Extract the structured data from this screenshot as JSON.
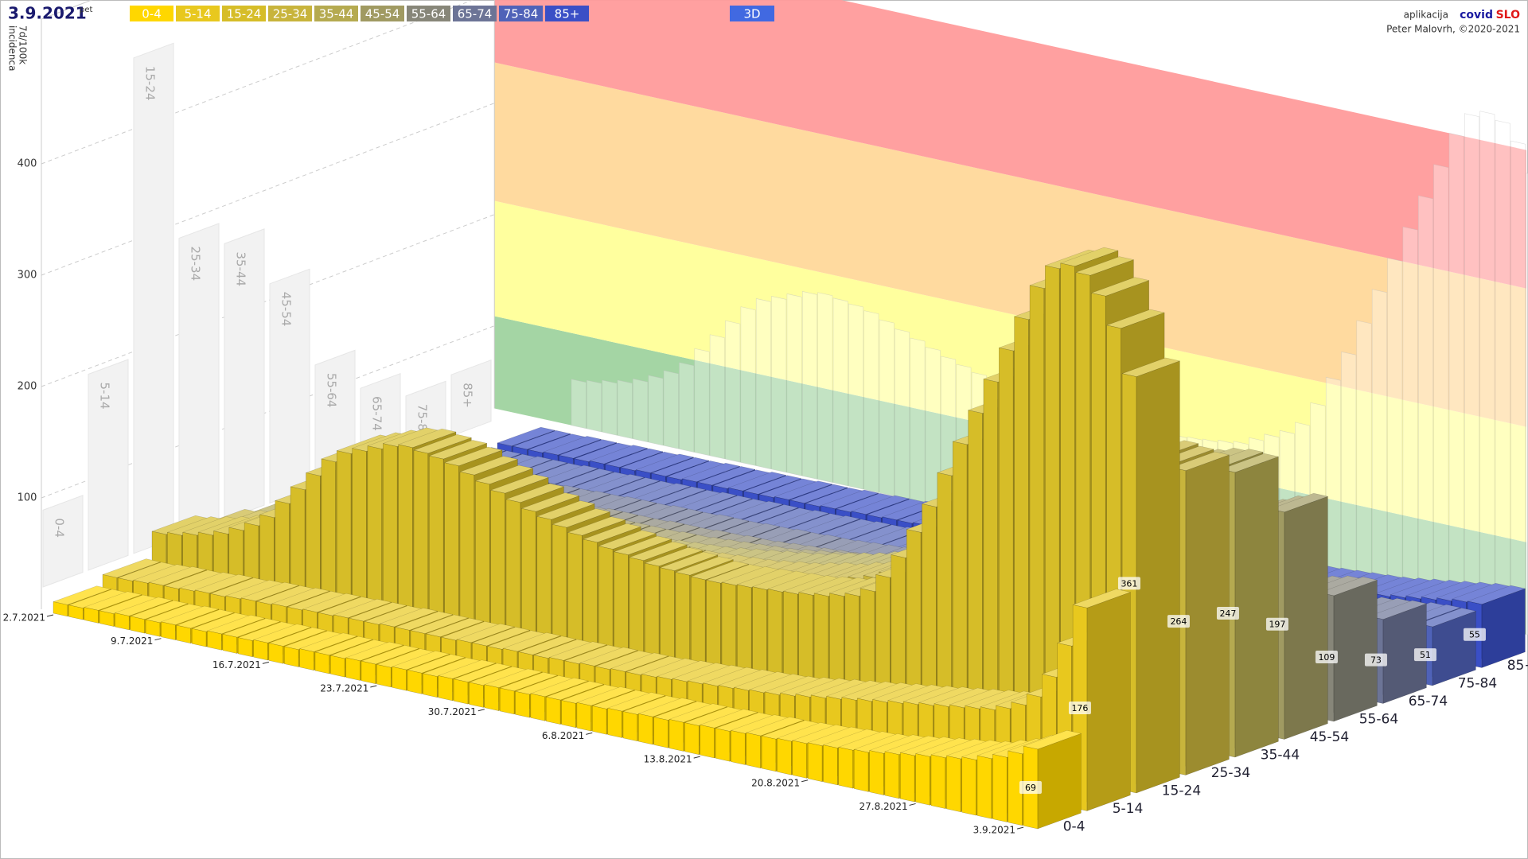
{
  "chart_data": {
    "type": "bar3d",
    "title": "3.9.2021",
    "subtitle": "pet",
    "ylabel": [
      "7d/100k",
      "incidenca"
    ],
    "ylim": [
      0,
      530
    ],
    "yticks": [
      100,
      200,
      300,
      400
    ],
    "view_button": "3D",
    "credit": {
      "prefix": "aplikacija",
      "brand_a": "covid",
      "brand_b": "SLO",
      "author": "Peter Malovrh, ©2020-2021"
    },
    "bands": [
      {
        "from": 0,
        "to": 80,
        "color": "#9fd39f"
      },
      {
        "from": 80,
        "to": 180,
        "color": "#ffff99"
      },
      {
        "from": 180,
        "to": 300,
        "color": "#ffd89a"
      },
      {
        "from": 300,
        "to": 420,
        "color": "#ff9b9b"
      }
    ],
    "categories": [
      "2.7.2021",
      null,
      null,
      null,
      null,
      null,
      null,
      "9.7.2021",
      null,
      null,
      null,
      null,
      null,
      null,
      "16.7.2021",
      null,
      null,
      null,
      null,
      null,
      null,
      "23.7.2021",
      null,
      null,
      null,
      null,
      null,
      null,
      "30.7.2021",
      null,
      null,
      null,
      null,
      null,
      null,
      "6.8.2021",
      null,
      null,
      null,
      null,
      null,
      null,
      "13.8.2021",
      null,
      null,
      null,
      null,
      null,
      null,
      "20.8.2021",
      null,
      null,
      null,
      null,
      null,
      null,
      "27.8.2021",
      null,
      null,
      null,
      null,
      null,
      null,
      "3.9.2021"
    ],
    "series": [
      {
        "name": "0-4",
        "color": "#ffd700",
        "values": [
          10,
          10,
          11,
          11,
          12,
          12,
          12,
          13,
          13,
          13,
          14,
          14,
          14,
          15,
          15,
          15,
          16,
          16,
          16,
          17,
          17,
          17,
          18,
          18,
          18,
          19,
          19,
          19,
          20,
          20,
          20,
          21,
          21,
          21,
          22,
          22,
          23,
          23,
          24,
          24,
          25,
          25,
          26,
          26,
          27,
          28,
          28,
          29,
          30,
          31,
          32,
          33,
          34,
          36,
          38,
          40,
          42,
          44,
          46,
          48,
          52,
          56,
          62,
          69
        ]
      },
      {
        "name": "5-14",
        "color": "#e8c81e",
        "values": [
          18,
          18,
          19,
          20,
          20,
          21,
          22,
          22,
          23,
          24,
          24,
          25,
          25,
          26,
          26,
          27,
          27,
          27,
          28,
          28,
          28,
          28,
          28,
          29,
          29,
          29,
          30,
          30,
          30,
          31,
          31,
          32,
          32,
          33,
          33,
          34,
          35,
          36,
          37,
          38,
          39,
          40,
          41,
          42,
          44,
          46,
          48,
          50,
          52,
          54,
          56,
          58,
          60,
          62,
          64,
          66,
          68,
          70,
          74,
          80,
          90,
          110,
          140,
          176
        ]
      },
      {
        "name": "15-24",
        "color": "#d6bd28",
        "values": [
          40,
          42,
          45,
          48,
          52,
          58,
          65,
          75,
          90,
          105,
          120,
          135,
          145,
          150,
          155,
          160,
          162,
          160,
          158,
          155,
          150,
          145,
          140,
          135,
          130,
          126,
          122,
          118,
          115,
          112,
          110,
          108,
          106,
          105,
          104,
          103,
          103,
          104,
          105,
          106,
          107,
          108,
          110,
          112,
          115,
          118,
          125,
          140,
          160,
          185,
          210,
          240,
          270,
          300,
          330,
          360,
          390,
          420,
          440,
          445,
          440,
          425,
          400,
          361
        ]
      },
      {
        "name": "25-34",
        "color": "#c8b43c",
        "values": [
          30,
          32,
          35,
          38,
          42,
          48,
          55,
          62,
          70,
          78,
          85,
          90,
          95,
          98,
          100,
          100,
          99,
          98,
          96,
          94,
          92,
          90,
          88,
          86,
          85,
          84,
          83,
          82,
          82,
          82,
          82,
          83,
          84,
          85,
          86,
          88,
          90,
          92,
          95,
          98,
          100,
          104,
          108,
          112,
          118,
          124,
          130,
          138,
          146,
          155,
          165,
          175,
          185,
          195,
          205,
          215,
          225,
          235,
          245,
          255,
          262,
          268,
          266,
          264
        ]
      },
      {
        "name": "35-44",
        "color": "#b5aa50",
        "values": [
          25,
          27,
          29,
          31,
          33,
          36,
          40,
          44,
          48,
          52,
          55,
          58,
          60,
          62,
          63,
          64,
          64,
          64,
          63,
          62,
          61,
          60,
          60,
          60,
          60,
          61,
          62,
          63,
          64,
          66,
          68,
          70,
          72,
          74,
          76,
          79,
          82,
          85,
          88,
          92,
          96,
          100,
          105,
          110,
          116,
          122,
          128,
          135,
          142,
          150,
          158,
          166,
          175,
          184,
          193,
          202,
          211,
          220,
          228,
          236,
          242,
          246,
          248,
          247
        ]
      },
      {
        "name": "45-54",
        "color": "#a09a62",
        "values": [
          18,
          19,
          20,
          22,
          24,
          26,
          28,
          30,
          32,
          34,
          36,
          38,
          40,
          41,
          42,
          43,
          43,
          43,
          43,
          43,
          43,
          43,
          44,
          44,
          45,
          46,
          47,
          48,
          49,
          50,
          52,
          54,
          56,
          58,
          60,
          62,
          64,
          67,
          70,
          73,
          76,
          80,
          84,
          88,
          92,
          96,
          100,
          105,
          110,
          115,
          120,
          126,
          132,
          138,
          144,
          150,
          156,
          162,
          168,
          174,
          180,
          186,
          192,
          197
        ]
      },
      {
        "name": "55-64",
        "color": "#878679",
        "values": [
          12,
          12,
          13,
          14,
          15,
          16,
          17,
          18,
          19,
          20,
          21,
          22,
          23,
          24,
          25,
          25,
          25,
          25,
          26,
          26,
          26,
          27,
          27,
          28,
          28,
          29,
          30,
          31,
          32,
          33,
          34,
          35,
          36,
          37,
          38,
          40,
          42,
          44,
          46,
          48,
          50,
          52,
          54,
          56,
          58,
          60,
          62,
          64,
          66,
          68,
          70,
          72,
          75,
          78,
          81,
          84,
          87,
          90,
          93,
          96,
          100,
          104,
          107,
          109
        ]
      },
      {
        "name": "65-74",
        "color": "#6c7496",
        "values": [
          8,
          8,
          9,
          9,
          10,
          10,
          11,
          11,
          12,
          12,
          13,
          13,
          14,
          14,
          14,
          15,
          15,
          15,
          16,
          16,
          16,
          17,
          17,
          18,
          18,
          19,
          19,
          20,
          21,
          22,
          23,
          24,
          25,
          26,
          27,
          28,
          29,
          30,
          31,
          32,
          33,
          34,
          35,
          36,
          37,
          38,
          40,
          42,
          44,
          46,
          48,
          50,
          52,
          54,
          56,
          58,
          60,
          62,
          64,
          66,
          68,
          70,
          72,
          73
        ]
      },
      {
        "name": "75-84",
        "color": "#4f62b8",
        "values": [
          6,
          6,
          6,
          7,
          7,
          7,
          8,
          8,
          8,
          9,
          9,
          9,
          10,
          10,
          10,
          11,
          11,
          11,
          12,
          12,
          12,
          13,
          13,
          14,
          14,
          15,
          15,
          16,
          16,
          17,
          17,
          18,
          18,
          19,
          19,
          20,
          20,
          21,
          22,
          23,
          24,
          25,
          26,
          27,
          28,
          29,
          30,
          31,
          32,
          33,
          34,
          35,
          36,
          37,
          38,
          39,
          40,
          42,
          44,
          46,
          48,
          50,
          51,
          51
        ]
      },
      {
        "name": "85+",
        "color": "#3a4fc6",
        "values": [
          8,
          8,
          8,
          9,
          9,
          9,
          10,
          10,
          10,
          11,
          11,
          11,
          12,
          12,
          12,
          13,
          13,
          13,
          14,
          14,
          14,
          15,
          15,
          16,
          16,
          17,
          17,
          18,
          18,
          19,
          19,
          20,
          20,
          21,
          21,
          22,
          22,
          23,
          24,
          25,
          26,
          27,
          28,
          29,
          30,
          31,
          32,
          33,
          34,
          35,
          36,
          37,
          38,
          39,
          40,
          41,
          42,
          44,
          46,
          48,
          50,
          52,
          54,
          55
        ]
      }
    ]
  }
}
